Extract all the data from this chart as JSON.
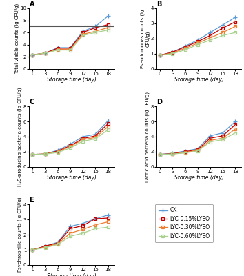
{
  "x": [
    0,
    3,
    6,
    9,
    12,
    15,
    18
  ],
  "series_labels": [
    "CK",
    "LYC-0.15%LYEO",
    "LYC-0.30%LYEO",
    "LYC-0.60%LYEO"
  ],
  "colors": [
    "#5B9BD5",
    "#C00000",
    "#ED7D31",
    "#A9D18E"
  ],
  "markers": [
    "+",
    "s",
    "s",
    "s"
  ],
  "A_title": "A",
  "A_ylabel": "Total viable counts (lg CFU/g)",
  "A_ylim": [
    0,
    10
  ],
  "A_yticks": [
    0,
    2,
    4,
    6,
    8,
    10
  ],
  "A_hline": 7.0,
  "A_data": [
    [
      2.3,
      2.6,
      3.5,
      3.5,
      6.2,
      7.0,
      8.7
    ],
    [
      2.3,
      2.6,
      3.4,
      3.4,
      6.0,
      6.8,
      7.3
    ],
    [
      2.3,
      2.6,
      3.2,
      3.25,
      5.7,
      6.2,
      6.8
    ],
    [
      2.3,
      2.6,
      3.1,
      3.1,
      5.5,
      6.0,
      6.4
    ]
  ],
  "B_title": "B",
  "B_ylabel": "Pseudomonas counts (lg CFU/g)",
  "B_ylim": [
    0,
    4
  ],
  "B_yticks": [
    0,
    1,
    2,
    3,
    4
  ],
  "B_data": [
    [
      0.9,
      1.1,
      1.5,
      1.9,
      2.4,
      2.9,
      3.4
    ],
    [
      0.9,
      1.1,
      1.45,
      1.8,
      2.2,
      2.7,
      3.1
    ],
    [
      0.9,
      1.05,
      1.35,
      1.7,
      2.05,
      2.4,
      2.8
    ],
    [
      0.9,
      1.0,
      1.25,
      1.6,
      1.9,
      2.2,
      2.4
    ]
  ],
  "C_title": "C",
  "C_ylabel": "H₂S-producing bacteria counts (lg CFU/g)",
  "C_ylim": [
    0,
    8
  ],
  "C_yticks": [
    0,
    2,
    4,
    6,
    8
  ],
  "C_data": [
    [
      1.65,
      1.7,
      2.2,
      3.0,
      4.0,
      4.3,
      6.1
    ],
    [
      1.65,
      1.7,
      2.1,
      2.8,
      3.75,
      4.1,
      5.7
    ],
    [
      1.65,
      1.7,
      2.0,
      2.7,
      3.6,
      3.9,
      5.3
    ],
    [
      1.65,
      1.7,
      1.9,
      2.5,
      3.4,
      3.7,
      4.9
    ]
  ],
  "D_title": "D",
  "D_ylabel": "Lactic acid bacteria counts (lg CFU/g)",
  "D_ylim": [
    0,
    8
  ],
  "D_yticks": [
    0,
    2,
    4,
    6,
    8
  ],
  "D_data": [
    [
      1.65,
      1.8,
      2.1,
      2.4,
      4.1,
      4.5,
      6.0
    ],
    [
      1.65,
      1.75,
      2.0,
      2.3,
      3.8,
      4.1,
      5.6
    ],
    [
      1.65,
      1.7,
      1.9,
      2.2,
      3.5,
      3.8,
      5.0
    ],
    [
      1.65,
      1.7,
      1.85,
      2.1,
      3.3,
      3.6,
      4.5
    ]
  ],
  "E_title": "E",
  "E_ylabel": "Psychrophilic counts (lg CFU/g)",
  "E_ylim": [
    0,
    4
  ],
  "E_yticks": [
    0,
    1,
    2,
    3,
    4
  ],
  "E_data": [
    [
      1.0,
      1.25,
      1.5,
      2.55,
      2.75,
      3.05,
      3.3
    ],
    [
      1.0,
      1.25,
      1.45,
      2.4,
      2.6,
      3.05,
      3.1
    ],
    [
      1.0,
      1.2,
      1.4,
      2.1,
      2.35,
      2.65,
      2.85
    ],
    [
      1.0,
      1.15,
      1.35,
      1.9,
      2.1,
      2.4,
      2.5
    ]
  ],
  "xlabel": "Storage time (day)",
  "xticks": [
    0,
    3,
    6,
    9,
    12,
    15,
    18
  ],
  "tick_fontsize": 5.0,
  "label_fontsize": 5.5,
  "ylabel_fontsize": 5.0,
  "title_fontsize": 7,
  "legend_fontsize": 5.5,
  "marker_size": 3.5,
  "linewidth": 0.9,
  "hline_color": "#555555",
  "hline_linewidth": 1.5
}
